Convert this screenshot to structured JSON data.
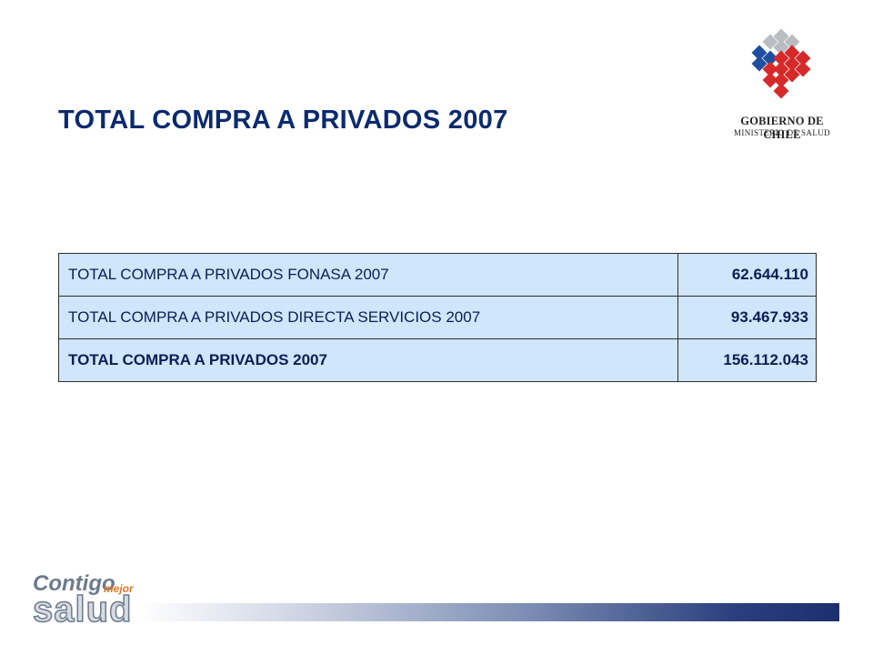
{
  "slide": {
    "title": "TOTAL COMPRA  A PRIVADOS 2007"
  },
  "logo": {
    "name": "GOBIERNO DE CHILE",
    "subtitle": "MINISTERIO DE SALUD",
    "colors": {
      "red": "#d62a2a",
      "blue": "#1f4fa0",
      "gray": "#b9bcc0"
    }
  },
  "table": {
    "rows": [
      {
        "label": "TOTAL COMPRA A PRIVADOS FONASA 2007",
        "value": "62.644.110"
      },
      {
        "label": "TOTAL COMPRA A PRIVADOS DIRECTA SERVICIOS 2007",
        "value": "93.467.933"
      },
      {
        "label": "TOTAL COMPRA A PRIVADOS 2007",
        "value": "156.112.043"
      }
    ],
    "background": "#cfe6fb"
  },
  "footer": {
    "brand_word1": "Contigo",
    "brand_word2": "mejor",
    "brand_word3": "salud"
  }
}
